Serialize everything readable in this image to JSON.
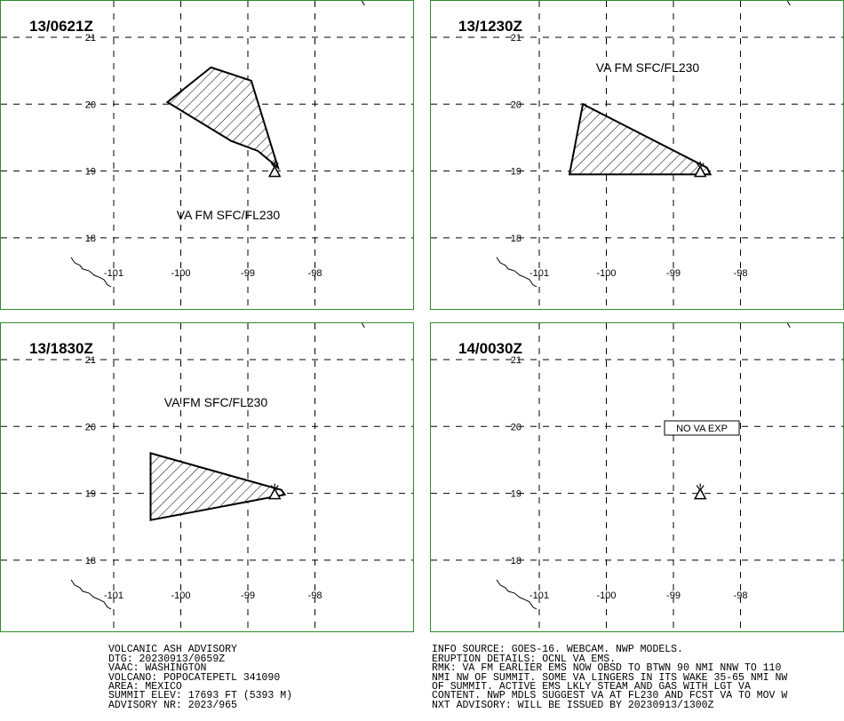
{
  "panels": [
    {
      "time": "13/0621Z",
      "label": "VA FM SFC/FL230",
      "polygon": [
        [
          -100.2,
          20.03
        ],
        [
          -99.55,
          20.55
        ],
        [
          -98.95,
          20.35
        ],
        [
          -98.55,
          19.05
        ],
        [
          -98.85,
          19.3
        ],
        [
          -99.25,
          19.45
        ]
      ]
    },
    {
      "time": "13/1230Z",
      "label": "VA FM SFC/FL230",
      "polygon": [
        [
          -100.35,
          20.0
        ],
        [
          -98.5,
          19.05
        ],
        [
          -98.45,
          18.95
        ],
        [
          -100.55,
          18.95
        ]
      ]
    },
    {
      "time": "13/1830Z",
      "label": "VA FM SFC/FL230",
      "polygon": [
        [
          -100.45,
          19.6
        ],
        [
          -98.5,
          19.05
        ],
        [
          -98.45,
          18.98
        ],
        [
          -100.45,
          18.6
        ]
      ]
    },
    {
      "time": "14/0030Z",
      "label": "NO VA EXP",
      "polygon": []
    }
  ],
  "volcano": {
    "lon": -98.6,
    "lat": 19.0
  },
  "axis": {
    "lon_ticks": [
      "-101",
      "-100",
      "-99",
      "-98"
    ],
    "lat_ticks": [
      "21",
      "20",
      "19",
      "18"
    ],
    "lon_values": [
      -101,
      -100,
      -99,
      -98
    ],
    "lat_values": [
      21,
      20,
      19,
      18
    ]
  },
  "advisory_left": [
    "VOLCANIC ASH ADVISORY",
    "DTG: 20230913/0659Z",
    "VAAC: WASHINGTON",
    "VOLCANO: POPOCATEPETL 341090",
    "AREA: MEXICO",
    "SUMMIT ELEV: 17693 FT (5393 M)",
    "ADVISORY NR: 2023/965"
  ],
  "advisory_right": [
    "INFO SOURCE: GOES-16. WEBCAM. NWP MODELS.",
    "ERUPTION DETAILS: OCNL VA EMS.",
    "RMK: VA FM EARLIER EMS NOW OBSD TO BTWN 90 NMI NNW TO 110",
    "NMI NW OF SUMMIT. SOME VA LINGERS IN ITS WAKE 35-65 NMI NW",
    "OF SUMMIT. ACTIVE EMS LKLY STEAM AND GAS WITH LGT VA",
    "CONTENT. NWP MDLS SUGGEST VA AT FL230 AND FCST VA TO MOV W",
    "NXT ADVISORY: WILL BE ISSUED BY 20230913/1300Z"
  ],
  "colors": {
    "frame": "#2e8b2e",
    "grid": "#000000",
    "ash_fill": "#ffffff",
    "hatch": "#000000"
  }
}
